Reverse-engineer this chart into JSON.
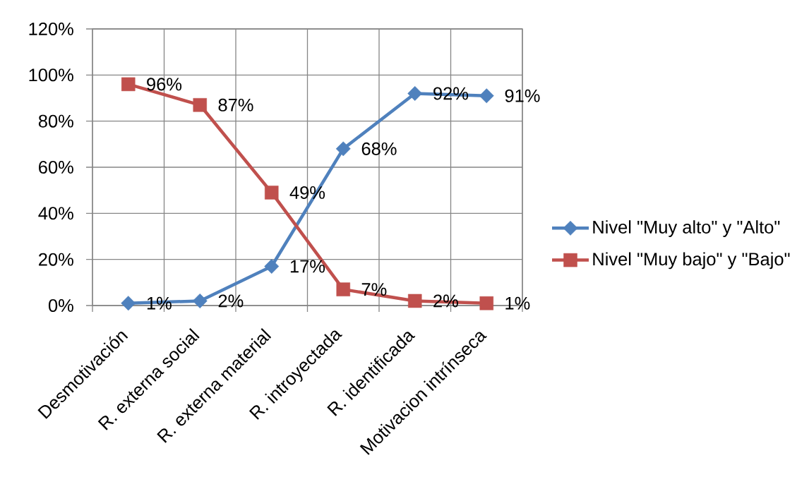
{
  "chart_data": {
    "type": "line",
    "categories": [
      "Desmotivación",
      "R. externa social",
      "R. externa material",
      "R. introyectada",
      "R. identificada",
      "Motivacion intrínseca"
    ],
    "series": [
      {
        "name": "Nivel \"Muy alto\" y \"Alto\"",
        "color": "#4f81bd",
        "marker": "diamond",
        "values": [
          1,
          2,
          17,
          68,
          92,
          91
        ],
        "value_labels": [
          "1%",
          "2%",
          "17%",
          "68%",
          "92%",
          "91%"
        ]
      },
      {
        "name": "Nivel \"Muy bajo\" y \"Bajo\"",
        "color": "#c0504d",
        "marker": "square",
        "values": [
          96,
          87,
          49,
          7,
          2,
          1
        ],
        "value_labels": [
          "96%",
          "87%",
          "49%",
          "7%",
          "2%",
          "1%"
        ]
      }
    ],
    "ylim": [
      0,
      120
    ],
    "yticks": [
      {
        "value": 0,
        "label": "0%"
      },
      {
        "value": 20,
        "label": "20%"
      },
      {
        "value": 40,
        "label": "40%"
      },
      {
        "value": 60,
        "label": "60%"
      },
      {
        "value": 80,
        "label": "80%"
      },
      {
        "value": 100,
        "label": "100%"
      },
      {
        "value": 120,
        "label": "120%"
      }
    ],
    "grid": true,
    "legend": "right",
    "line_style": "solid"
  }
}
